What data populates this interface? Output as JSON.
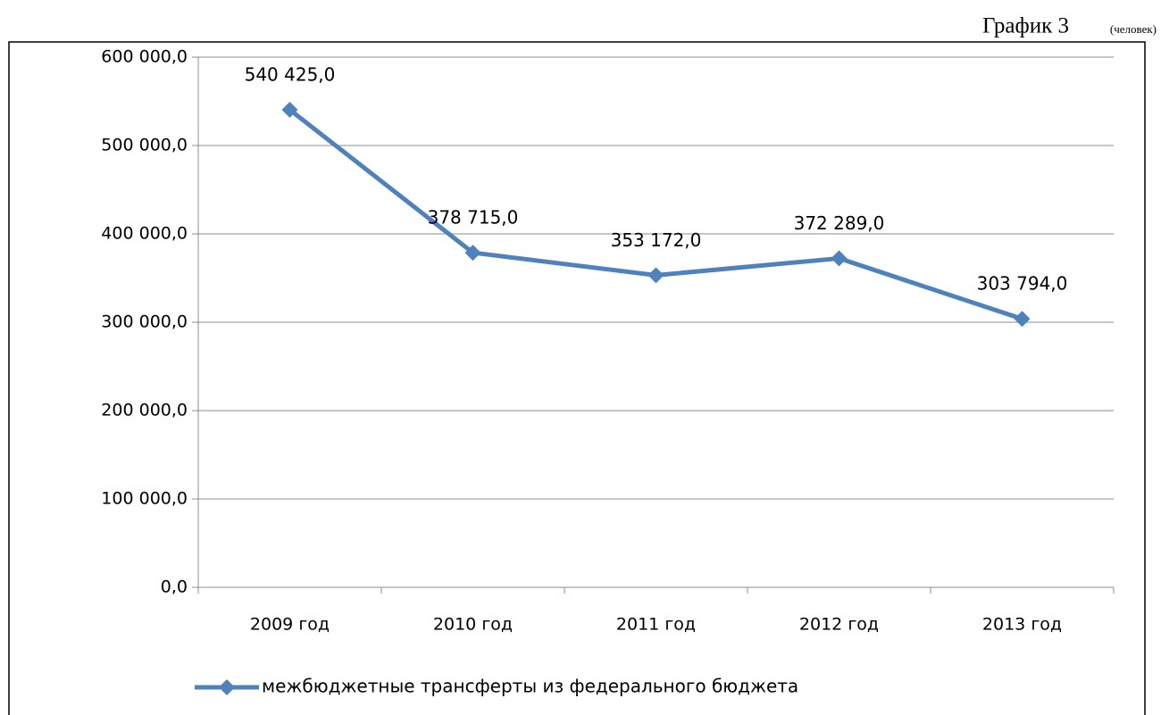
{
  "chart_data": {
    "type": "line",
    "title": "График 3",
    "subtitle": "(человек)",
    "categories": [
      "2009 год",
      "2010 год",
      "2011 год",
      "2012 год",
      "2013 год"
    ],
    "series": [
      {
        "name": "межбюджетные трансферты из федерального бюджета",
        "color": "#4f81bd",
        "values": [
          540425,
          378715,
          353172,
          372289,
          303794
        ],
        "value_labels": [
          "540 425,0",
          "378 715,0",
          "353 172,0",
          "372 289,0",
          "303 794,0"
        ]
      }
    ],
    "ylim": [
      0,
      600000
    ],
    "yticks": [
      {
        "value": 0,
        "label": "0,0"
      },
      {
        "value": 100000,
        "label": "100 000,0"
      },
      {
        "value": 200000,
        "label": "200 000,0"
      },
      {
        "value": 300000,
        "label": "300 000,0"
      },
      {
        "value": 400000,
        "label": "400 000,0"
      },
      {
        "value": 500000,
        "label": "500 000,0"
      },
      {
        "value": 600000,
        "label": "600 000,0"
      }
    ],
    "grid": true,
    "legend": "bottom"
  }
}
